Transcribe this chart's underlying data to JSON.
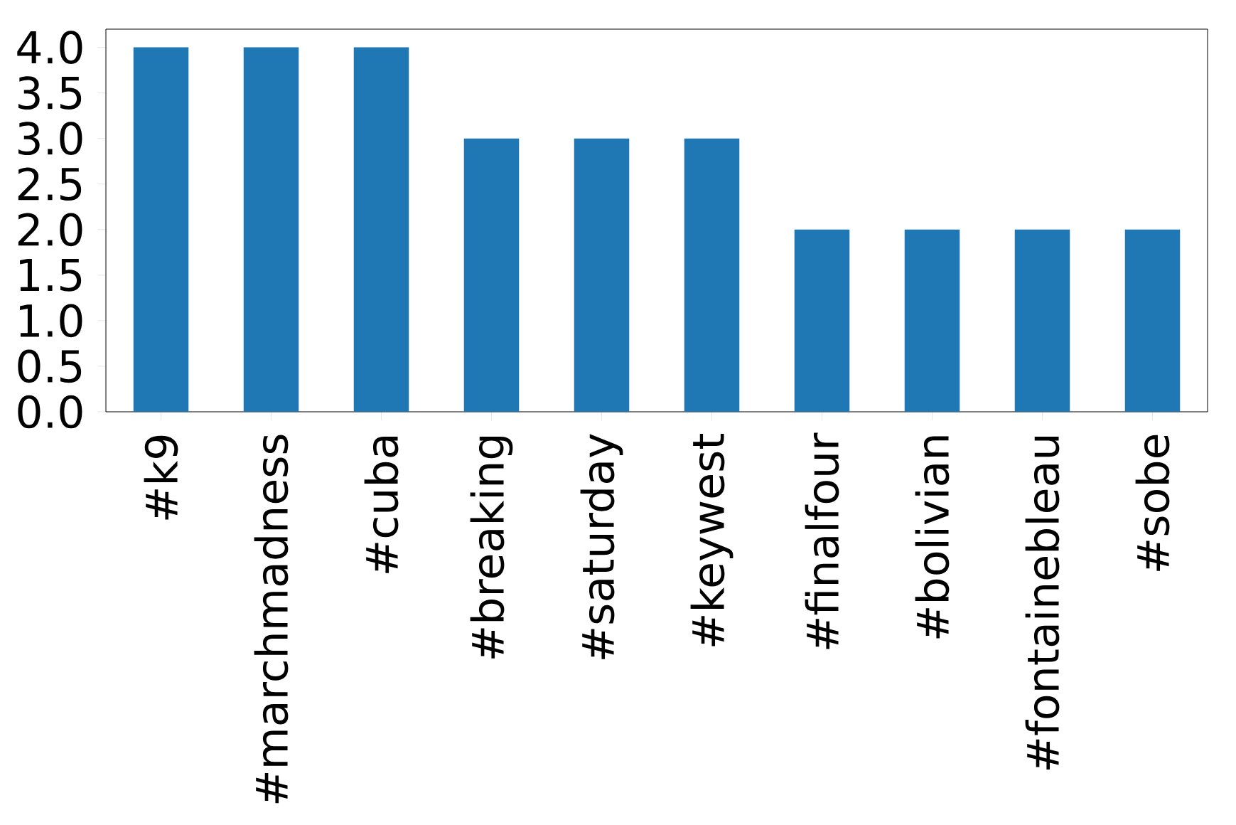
{
  "chart_data": {
    "type": "bar",
    "categories": [
      "#k9",
      "#marchmadness",
      "#cuba",
      "#breaking",
      "#saturday",
      "#keywest",
      "#finalfour",
      "#bolivian",
      "#fontainebleau",
      "#sobe"
    ],
    "values": [
      4,
      4,
      4,
      3,
      3,
      3,
      2,
      2,
      2,
      2
    ],
    "color": "#1f77b4",
    "ylim": [
      0,
      4.2
    ],
    "yticks": [
      {
        "value": 0,
        "label": "0.0"
      },
      {
        "value": 0.5,
        "label": "0.5"
      },
      {
        "value": 1,
        "label": "1.0"
      },
      {
        "value": 1.5,
        "label": "1.5"
      },
      {
        "value": 2,
        "label": "2.0"
      },
      {
        "value": 2.5,
        "label": "2.5"
      },
      {
        "value": 3,
        "label": "3.0"
      },
      {
        "value": 3.5,
        "label": "3.5"
      },
      {
        "value": 4,
        "label": "4.0"
      }
    ],
    "grid": false
  }
}
